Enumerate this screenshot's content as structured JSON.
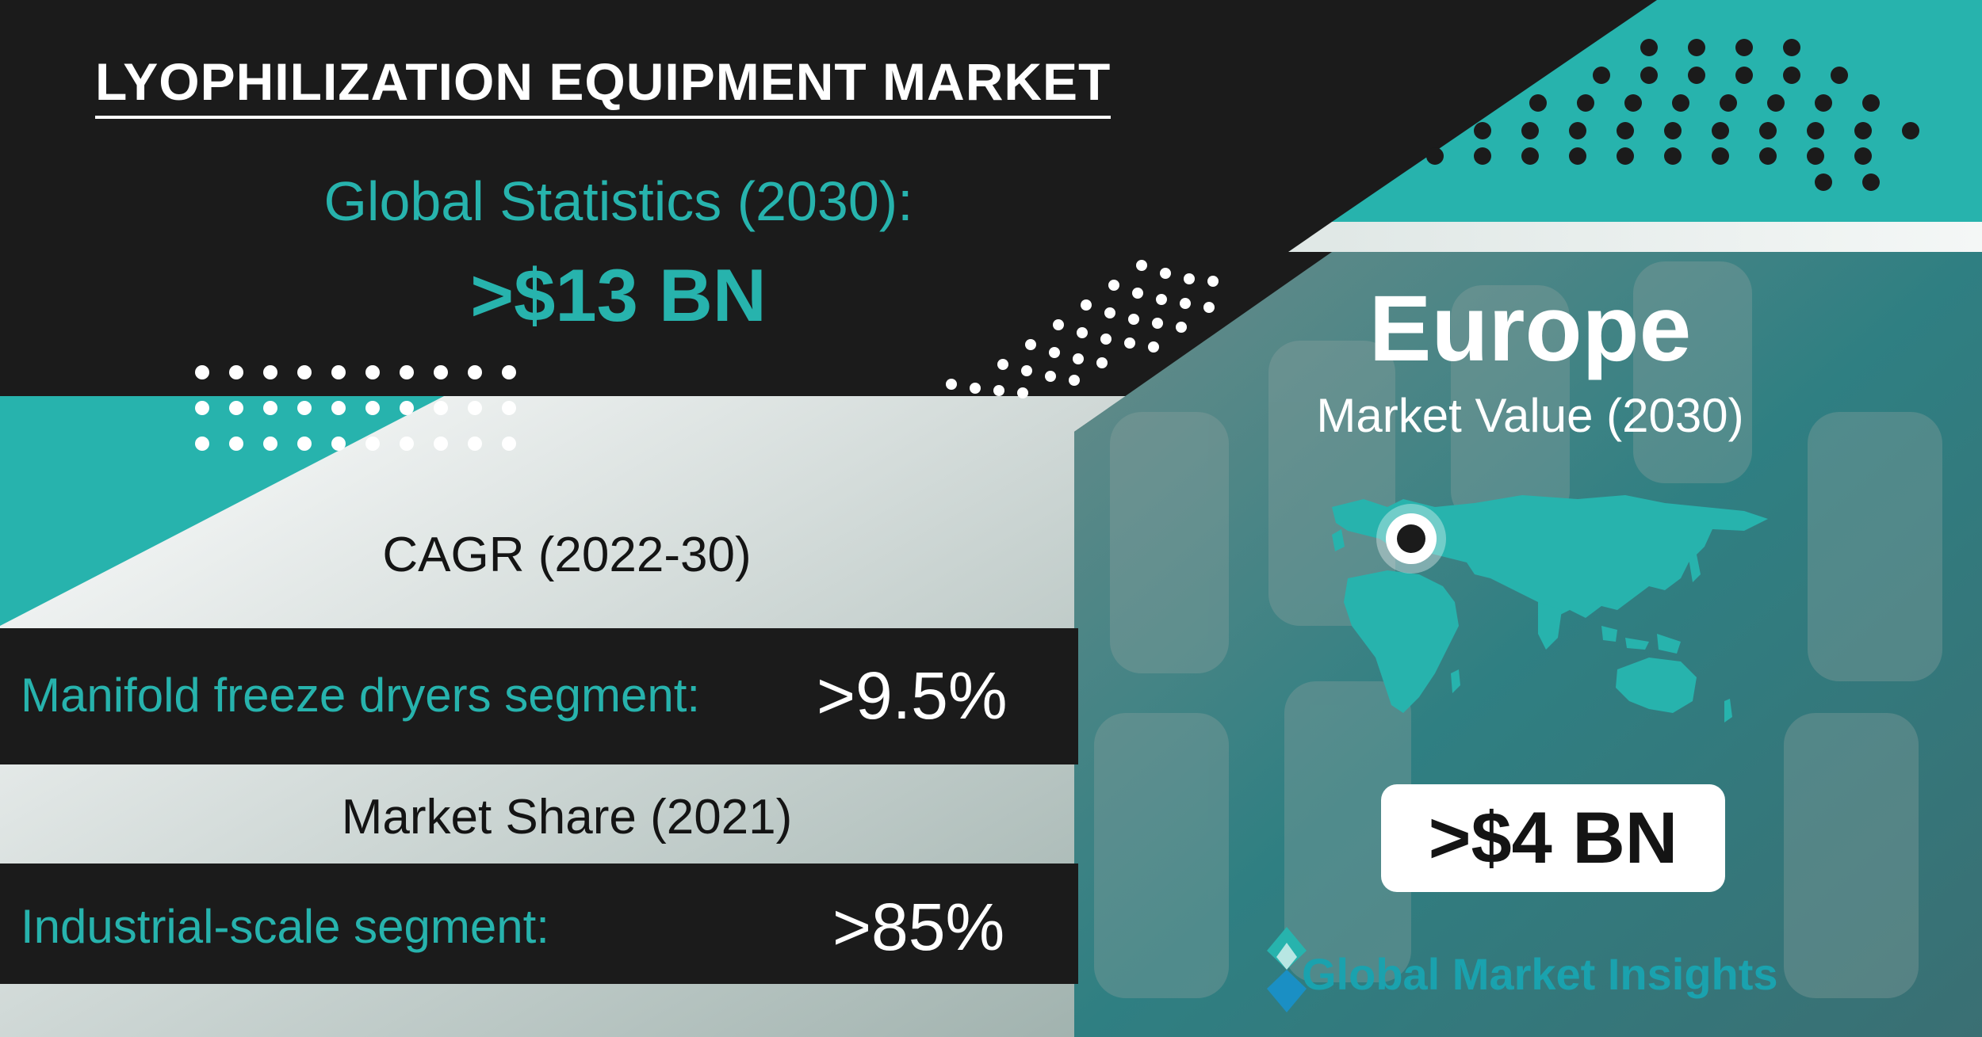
{
  "title": "LYOPHILIZATION EQUIPMENT MARKET",
  "global_stats": {
    "label": "Global Statistics (2030):",
    "value": ">$13 BN"
  },
  "cagr": {
    "label": "CAGR (2022-30)",
    "segment_label": "Manifold freeze dryers segment:",
    "segment_value": ">9.5%"
  },
  "market_share": {
    "label": "Market Share (2021)",
    "segment_label": "Industrial-scale segment:",
    "segment_value": ">85%"
  },
  "region": {
    "name": "Europe",
    "subtitle": "Market Value (2030)",
    "value": ">$4 BN"
  },
  "brand": {
    "name": "Global Market Insights"
  },
  "colors": {
    "teal": "#27b3ad",
    "dark": "#1b1b1b",
    "white": "#ffffff"
  }
}
